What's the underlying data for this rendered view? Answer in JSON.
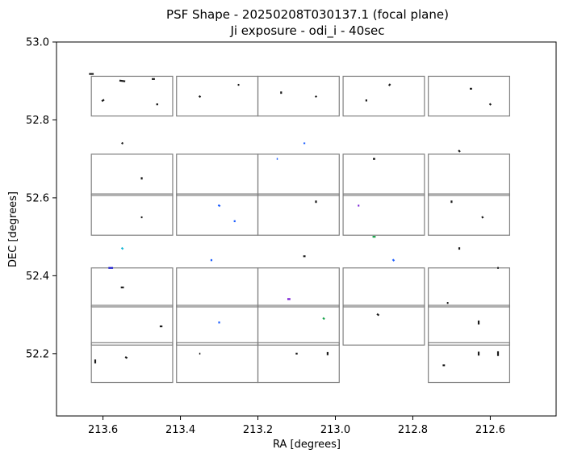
{
  "chart_data": {
    "type": "scatter",
    "title": "PSF Shape - 20250208T030137.1 (focal plane)",
    "subtitle": "Ji exposure - odi_i - 40sec",
    "xlabel": "RA [degrees]",
    "ylabel": "DEC [degrees]",
    "xlim": [
      213.72,
      212.43
    ],
    "ylim": [
      52.04,
      53.0
    ],
    "x_inverted": true,
    "x_ticks": [
      213.6,
      213.4,
      213.2,
      213.0,
      212.8,
      212.6
    ],
    "x_tick_labels": [
      "213.6",
      "213.4",
      "213.2",
      "213.0",
      "212.8",
      "212.6"
    ],
    "y_ticks": [
      52.2,
      52.4,
      52.6,
      52.8,
      53.0
    ],
    "y_tick_labels": [
      "52.2",
      "52.4",
      "52.6",
      "52.8",
      "53.0"
    ],
    "grid": false,
    "ccd_outline_color": "#808080",
    "ccd_columns": [
      {
        "ra_left": 213.63,
        "ra_right": 213.42
      },
      {
        "ra_left": 213.41,
        "ra_right": 213.2
      },
      {
        "ra_left": 213.2,
        "ra_right": 212.99
      },
      {
        "ra_left": 212.98,
        "ra_right": 212.77
      },
      {
        "ra_left": 212.76,
        "ra_right": 212.55
      }
    ],
    "ccd_rows": [
      {
        "dec_bottom": 52.126,
        "dec_top": 52.228
      },
      {
        "dec_bottom": 52.222,
        "dec_top": 52.324
      },
      {
        "dec_bottom": 52.32,
        "dec_top": 52.42
      },
      {
        "dec_bottom": 52.504,
        "dec_top": 52.61
      },
      {
        "dec_bottom": 52.606,
        "dec_top": 52.712
      },
      {
        "dec_bottom": 52.81,
        "dec_top": 52.912
      }
    ],
    "ccd_rows_note": "",
    "ccds": [
      {
        "col": 0,
        "row": 5
      },
      {
        "col": 1,
        "row": 5
      },
      {
        "col": 2,
        "row": 5
      },
      {
        "col": 3,
        "row": 5
      },
      {
        "col": 4,
        "row": 5
      },
      {
        "col": 0,
        "row": 4
      },
      {
        "col": 1,
        "row": 4
      },
      {
        "col": 2,
        "row": 4
      },
      {
        "col": 3,
        "row": 4
      },
      {
        "col": 4,
        "row": 4
      },
      {
        "col": 0,
        "row": 3
      },
      {
        "col": 1,
        "row": 3
      },
      {
        "col": 2,
        "row": 3
      },
      {
        "col": 3,
        "row": 3
      },
      {
        "col": 4,
        "row": 3
      },
      {
        "col": 0,
        "row": 2
      },
      {
        "col": 1,
        "row": 2
      },
      {
        "col": 2,
        "row": 2
      },
      {
        "col": 3,
        "row": 2
      },
      {
        "col": 4,
        "row": 2
      },
      {
        "col": 0,
        "row": 1
      },
      {
        "col": 1,
        "row": 1
      },
      {
        "col": 2,
        "row": 1
      },
      {
        "col": 3,
        "row": 1
      },
      {
        "col": 4,
        "row": 1
      },
      {
        "col": 0,
        "row": 0
      },
      {
        "col": 1,
        "row": 0
      },
      {
        "col": 2,
        "row": 0
      },
      {
        "col": 4,
        "row": 0
      }
    ],
    "psf_markers": [
      {
        "ra": 213.63,
        "dec": 52.918,
        "dx": 0.012,
        "dy": 0.0,
        "color": "#1a1a1a"
      },
      {
        "ra": 213.55,
        "dec": 52.9,
        "dx": 0.015,
        "dy": 0.002,
        "color": "#1a1a1a"
      },
      {
        "ra": 213.47,
        "dec": 52.905,
        "dx": 0.008,
        "dy": 0.0,
        "color": "#1a1a1a"
      },
      {
        "ra": 213.6,
        "dec": 52.85,
        "dx": 0.006,
        "dy": -0.004,
        "color": "#1a1a1a"
      },
      {
        "ra": 213.46,
        "dec": 52.84,
        "dx": 0.005,
        "dy": 0.0,
        "color": "#1a1a1a"
      },
      {
        "ra": 213.35,
        "dec": 52.86,
        "dx": 0.003,
        "dy": 0.004,
        "color": "#1a1a1a"
      },
      {
        "ra": 213.25,
        "dec": 52.89,
        "dx": 0.004,
        "dy": 0.0,
        "color": "#1a1a1a"
      },
      {
        "ra": 213.14,
        "dec": 52.87,
        "dx": 0.0,
        "dy": 0.006,
        "color": "#1a1a1a"
      },
      {
        "ra": 213.05,
        "dec": 52.86,
        "dx": 0.003,
        "dy": 0.003,
        "color": "#1a1a1a"
      },
      {
        "ra": 212.92,
        "dec": 52.85,
        "dx": 0.0,
        "dy": 0.005,
        "color": "#1a1a1a"
      },
      {
        "ra": 212.86,
        "dec": 52.89,
        "dx": 0.004,
        "dy": -0.004,
        "color": "#1a1a1a"
      },
      {
        "ra": 212.65,
        "dec": 52.88,
        "dx": 0.006,
        "dy": 0.0,
        "color": "#1a1a1a"
      },
      {
        "ra": 212.6,
        "dec": 52.84,
        "dx": 0.003,
        "dy": 0.004,
        "color": "#1a1a1a"
      },
      {
        "ra": 213.55,
        "dec": 52.74,
        "dx": 0.004,
        "dy": 0.002,
        "color": "#1a1a1a"
      },
      {
        "ra": 213.5,
        "dec": 52.65,
        "dx": 0.0,
        "dy": 0.006,
        "color": "#1a1a1a"
      },
      {
        "ra": 213.08,
        "dec": 52.74,
        "dx": 0.0,
        "dy": 0.004,
        "color": "#1f5fff"
      },
      {
        "ra": 213.15,
        "dec": 52.7,
        "dx": 0.003,
        "dy": 0.0,
        "color": "#1f5fff"
      },
      {
        "ra": 212.9,
        "dec": 52.7,
        "dx": 0.006,
        "dy": 0.0,
        "color": "#1a1a1a"
      },
      {
        "ra": 212.68,
        "dec": 52.72,
        "dx": 0.004,
        "dy": 0.004,
        "color": "#1a1a1a"
      },
      {
        "ra": 213.5,
        "dec": 52.55,
        "dx": 0.004,
        "dy": 0.0,
        "color": "#1a1a1a"
      },
      {
        "ra": 213.3,
        "dec": 52.58,
        "dx": 0.005,
        "dy": 0.003,
        "color": "#1f5fff"
      },
      {
        "ra": 213.26,
        "dec": 52.54,
        "dx": 0.0,
        "dy": 0.005,
        "color": "#1f5fff"
      },
      {
        "ra": 213.05,
        "dec": 52.59,
        "dx": 0.0,
        "dy": 0.006,
        "color": "#1a1a1a"
      },
      {
        "ra": 212.94,
        "dec": 52.58,
        "dx": 0.004,
        "dy": 0.0,
        "color": "#7a1fd6"
      },
      {
        "ra": 212.7,
        "dec": 52.59,
        "dx": 0.0,
        "dy": 0.006,
        "color": "#1a1a1a"
      },
      {
        "ra": 212.62,
        "dec": 52.55,
        "dx": 0.003,
        "dy": 0.004,
        "color": "#1a1a1a"
      },
      {
        "ra": 213.58,
        "dec": 52.42,
        "dx": 0.012,
        "dy": 0.0,
        "color": "#1a1acc"
      },
      {
        "ra": 213.55,
        "dec": 52.47,
        "dx": 0.004,
        "dy": 0.004,
        "color": "#16b8d6"
      },
      {
        "ra": 213.32,
        "dec": 52.44,
        "dx": 0.0,
        "dy": 0.005,
        "color": "#1f5fff"
      },
      {
        "ra": 213.08,
        "dec": 52.45,
        "dx": 0.006,
        "dy": 0.0,
        "color": "#1a1a1a"
      },
      {
        "ra": 212.9,
        "dec": 52.5,
        "dx": 0.008,
        "dy": 0.0,
        "color": "#17a34a"
      },
      {
        "ra": 212.85,
        "dec": 52.44,
        "dx": 0.004,
        "dy": 0.004,
        "color": "#1f5fff"
      },
      {
        "ra": 212.68,
        "dec": 52.47,
        "dx": 0.0,
        "dy": 0.006,
        "color": "#1a1a1a"
      },
      {
        "ra": 212.58,
        "dec": 52.42,
        "dx": 0.004,
        "dy": 0.0,
        "color": "#1a1a1a"
      },
      {
        "ra": 213.55,
        "dec": 52.37,
        "dx": 0.008,
        "dy": 0.0,
        "color": "#1a1a1a"
      },
      {
        "ra": 213.45,
        "dec": 52.27,
        "dx": 0.007,
        "dy": 0.0,
        "color": "#1a1a1a"
      },
      {
        "ra": 213.3,
        "dec": 52.28,
        "dx": 0.0,
        "dy": 0.005,
        "color": "#1f5fff"
      },
      {
        "ra": 213.12,
        "dec": 52.34,
        "dx": 0.008,
        "dy": 0.0,
        "color": "#7a1fd6"
      },
      {
        "ra": 213.03,
        "dec": 52.29,
        "dx": 0.004,
        "dy": 0.004,
        "color": "#17a34a"
      },
      {
        "ra": 212.89,
        "dec": 52.3,
        "dx": 0.005,
        "dy": 0.004,
        "color": "#1a1a1a"
      },
      {
        "ra": 212.71,
        "dec": 52.33,
        "dx": 0.004,
        "dy": 0.0,
        "color": "#1a1a1a"
      },
      {
        "ra": 212.63,
        "dec": 52.28,
        "dx": 0.0,
        "dy": 0.01,
        "color": "#1a1a1a"
      },
      {
        "ra": 213.62,
        "dec": 52.18,
        "dx": 0.0,
        "dy": 0.01,
        "color": "#1a1a1a"
      },
      {
        "ra": 213.54,
        "dec": 52.19,
        "dx": 0.005,
        "dy": 0.003,
        "color": "#1a1a1a"
      },
      {
        "ra": 213.35,
        "dec": 52.2,
        "dx": 0.003,
        "dy": 0.0,
        "color": "#1a1a1a"
      },
      {
        "ra": 213.1,
        "dec": 52.2,
        "dx": 0.005,
        "dy": 0.0,
        "color": "#1a1a1a"
      },
      {
        "ra": 213.02,
        "dec": 52.2,
        "dx": 0.0,
        "dy": 0.008,
        "color": "#1a1a1a"
      },
      {
        "ra": 212.72,
        "dec": 52.17,
        "dx": 0.006,
        "dy": 0.0,
        "color": "#1a1a1a"
      },
      {
        "ra": 212.63,
        "dec": 52.2,
        "dx": 0.0,
        "dy": 0.01,
        "color": "#1a1a1a"
      },
      {
        "ra": 212.58,
        "dec": 52.2,
        "dx": 0.0,
        "dy": 0.012,
        "color": "#1a1a1a"
      }
    ]
  }
}
